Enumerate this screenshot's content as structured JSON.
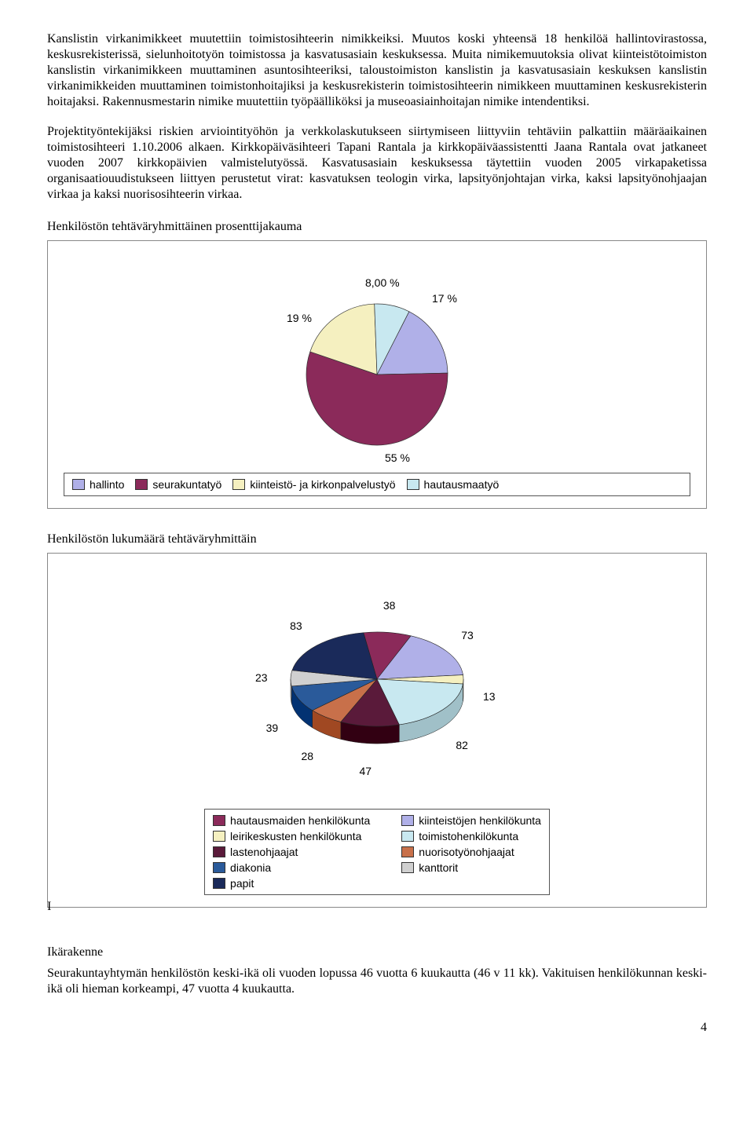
{
  "paragraphs": {
    "p1": "Kanslistin virkanimikkeet muutettiin toimistosihteerin nimikkeiksi. Muutos koski yhteensä 18 henkilöä hallintovirastossa, keskusrekisterissä, sielunhoitotyön toimistossa ja kasvatusasiain keskuksessa. Muita nimikemuutoksia olivat kiinteistötoimiston kanslistin virkanimikkeen muuttaminen asuntosihteeriksi, taloustoimiston kanslistin ja kasvatusasiain keskuksen kanslistin virkanimikkeiden muuttaminen toimistonhoitajiksi ja keskusrekisterin toimistosihteerin nimikkeen muuttaminen keskusrekisterin hoitajaksi. Rakennusmestarin nimike muutettiin työpäälliköksi ja museoasiainhoitajan nimike intendentiksi.",
    "p2": "Projektityöntekijäksi riskien arviointityöhön ja verkkolaskutukseen siirtymiseen liittyviin tehtäviin palkattiin määräaikainen toimistosihteeri 1.10.2006 alkaen. Kirkkopäiväsihteeri Tapani Rantala ja kirkkopäiväassistentti Jaana Rantala ovat jatkaneet vuoden 2007 kirkkopäivien valmistelutyössä. Kasvatusasiain keskuksessa täytettiin vuoden 2005 virkapaketissa organisaatiouudistukseen liittyen perustetut virat: kasvatuksen teologin virka, lapsityönjohtajan virka, kaksi lapsityönohjaajan virkaa ja kaksi nuorisosihteerin virkaa."
  },
  "chart1": {
    "title": "Henkilöstön tehtäväryhmittäinen prosenttijakauma",
    "type": "pie",
    "slices": [
      {
        "label": "hallinto",
        "value": 17,
        "display": "17 %",
        "color": "#b0b0e8"
      },
      {
        "label": "seurakuntatyö",
        "value": 55,
        "display": "55 %",
        "color": "#8b2a5a"
      },
      {
        "label": "kiinteistö- ja kirkonpalvelustyö",
        "value": 19,
        "display": "19 %",
        "color": "#f5f0c0"
      },
      {
        "label": "hautausmaatyö",
        "value": 8,
        "display": "8,00 %",
        "color": "#c8e8f0"
      }
    ],
    "background_color": "#ffffff",
    "label_fontsize": 14,
    "legend_position": "bottom"
  },
  "chart2": {
    "title": "Henkilöstön lukumäärä tehtäväryhmittäin",
    "type": "pie-3d",
    "slices": [
      {
        "label": "hautausmaiden henkilökunta",
        "value": 38,
        "display": "38",
        "color": "#8b2a5a"
      },
      {
        "label": "kiinteistöjen henkilökunta",
        "value": 73,
        "display": "73",
        "color": "#b0b0e8"
      },
      {
        "label": "leirikeskusten henkilökunta",
        "value": 13,
        "display": "13",
        "color": "#f5f0c0"
      },
      {
        "label": "toimistohenkilökunta",
        "value": 82,
        "display": "82",
        "color": "#c8e8f0"
      },
      {
        "label": "lastenohjaajat",
        "value": 47,
        "display": "47",
        "color": "#5a1a3a"
      },
      {
        "label": "nuorisotyönohjaajat",
        "value": 28,
        "display": "28",
        "color": "#c8704a"
      },
      {
        "label": "diakonia",
        "value": 39,
        "display": "39",
        "color": "#2a5a9a"
      },
      {
        "label": "kanttorit",
        "value": 23,
        "display": "23",
        "color": "#d0d0d0"
      },
      {
        "label": "papit",
        "value": 83,
        "display": "83",
        "color": "#1a2a5a"
      }
    ],
    "background_color": "#ffffff",
    "label_fontsize": 14,
    "legend_position": "bottom"
  },
  "side_letter": "I",
  "ikarakenne": {
    "title": "Ikärakenne",
    "text": "Seurakuntayhtymän henkilöstön keski-ikä oli vuoden lopussa 46 vuotta 6 kuukautta (46 v 11 kk). Vakituisen henkilökunnan keski-ikä oli hieman korkeampi, 47 vuotta 4 kuukautta."
  },
  "page_number": "4"
}
